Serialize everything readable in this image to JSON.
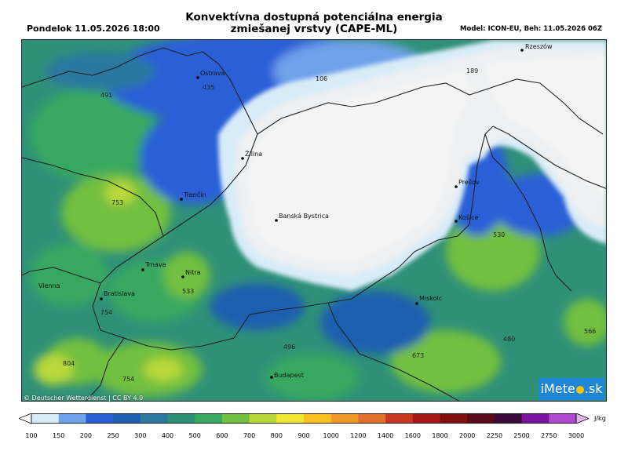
{
  "header": {
    "title_line1": "Konvektívna dostupná potenciálna energia",
    "title_line2": "zmiešanej vrstvy (CAPE-ML)",
    "date": "Pondelok 11.05.2026 18:00",
    "model": "Model: ICON-EU, Beh: 11.05.2026 06Z"
  },
  "map": {
    "cities": [
      {
        "name": "Rzeszów"
      },
      {
        "name": "Ostrava"
      },
      {
        "name": "Žilina"
      },
      {
        "name": "Trenčín"
      },
      {
        "name": "Banská Bystrica"
      },
      {
        "name": "Prešov"
      },
      {
        "name": "Košice"
      },
      {
        "name": "Trnava"
      },
      {
        "name": "Nitra"
      },
      {
        "name": "Vienna"
      },
      {
        "name": "Bratislava"
      },
      {
        "name": "Miskolc"
      },
      {
        "name": "Budapest"
      }
    ],
    "values": [
      "106",
      "189",
      "435",
      "491",
      "753",
      "530",
      "533",
      "754",
      "804",
      "754",
      "496",
      "673",
      "480",
      "566"
    ]
  },
  "copyright": "© Deutscher Wetterdienst | CC BY 4.0",
  "logo": {
    "left": "iMete",
    "right": ".sk"
  },
  "colorbar": {
    "unit": "J/kg",
    "ticks": [
      "100",
      "150",
      "200",
      "250",
      "300",
      "400",
      "500",
      "600",
      "700",
      "800",
      "900",
      "1000",
      "1200",
      "1400",
      "1600",
      "1800",
      "2000",
      "2250",
      "2500",
      "2750",
      "3000"
    ],
    "colors": [
      "#d8ecf8",
      "#6fa2ea",
      "#2a5fd8",
      "#1f5fb0",
      "#2b78a0",
      "#2f9078",
      "#38a860",
      "#72c040",
      "#b8d83a",
      "#f0e830",
      "#f8c020",
      "#f09a28",
      "#e0702a",
      "#c8381e",
      "#a81818",
      "#801010",
      "#5a0a1a",
      "#3a0a3a",
      "#7a14a0",
      "#b048d0",
      "#e0b8ea"
    ]
  }
}
